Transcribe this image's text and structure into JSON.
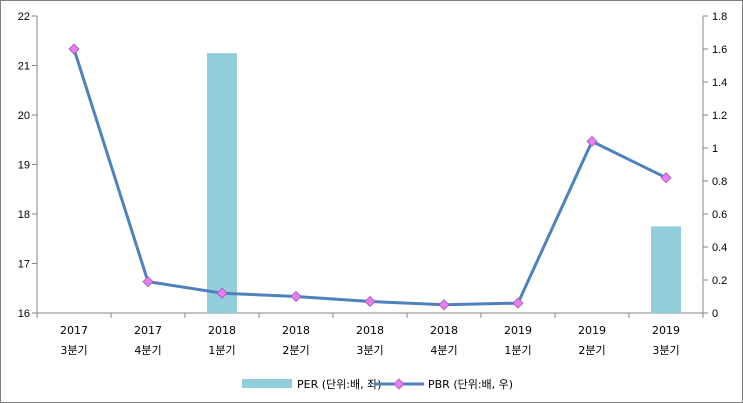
{
  "chart_data": {
    "type": "bar+line",
    "categories": [
      [
        "2017",
        "3분기"
      ],
      [
        "2017",
        "4분기"
      ],
      [
        "2018",
        "1분기"
      ],
      [
        "2018",
        "2분기"
      ],
      [
        "2018",
        "3분기"
      ],
      [
        "2018",
        "4분기"
      ],
      [
        "2019",
        "1분기"
      ],
      [
        "2019",
        "2분기"
      ],
      [
        "2019",
        "3분기"
      ]
    ],
    "series": [
      {
        "name": "PER (단위:배, 좌)",
        "type": "bar",
        "axis": "left",
        "color": "#92cddc",
        "values": [
          null,
          null,
          21.25,
          null,
          null,
          null,
          null,
          null,
          17.75
        ]
      },
      {
        "name": "PBR (단위:배, 우)",
        "type": "line",
        "axis": "right",
        "color": "#4f81bd",
        "marker_color": "#e87ef0",
        "values": [
          1.6,
          0.19,
          0.12,
          0.1,
          0.07,
          0.05,
          0.06,
          1.04,
          0.82
        ]
      }
    ],
    "y_left": {
      "min": 16,
      "max": 22,
      "ticks": [
        "16",
        "17",
        "18",
        "19",
        "20",
        "21",
        "22"
      ]
    },
    "y_right": {
      "min": 0,
      "max": 1.8,
      "ticks": [
        "0",
        "0.2",
        "0.4",
        "0.6",
        "0.8",
        "1",
        "1.2",
        "1.4",
        "1.6",
        "1.8"
      ]
    },
    "grid": false,
    "legend": "bottom"
  }
}
